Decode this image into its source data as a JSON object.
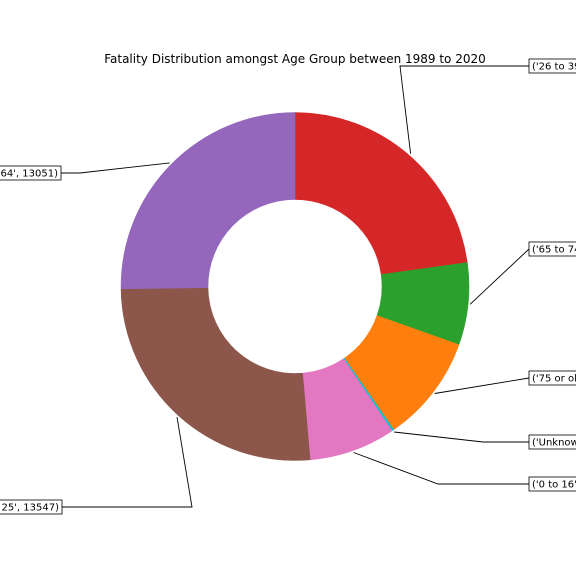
{
  "chart_data": {
    "type": "pie",
    "style": "donut",
    "title": "Fatality Distribution amongst Age Group between 1989 to 2020",
    "start_angle_deg": 90,
    "direction": "clockwise",
    "slices": [
      {
        "label": "('26 to 39",
        "value": 11800,
        "color": "#d62728"
      },
      {
        "label": "('65 to 74",
        "value": 3950,
        "color": "#2ca02c"
      },
      {
        "label": "('75 or ol",
        "value": 5150,
        "color": "#ff7f0e"
      },
      {
        "label": "('Unknow",
        "value": 110,
        "color": "#17becf"
      },
      {
        "label": "('0 to 16'",
        "value": 4150,
        "color": "#e377c2"
      },
      {
        "label": "25', 13547)",
        "value": 13547,
        "color": "#8c564b"
      },
      {
        "label": "64', 13051)",
        "value": 13051,
        "color": "#9467bd"
      }
    ]
  }
}
